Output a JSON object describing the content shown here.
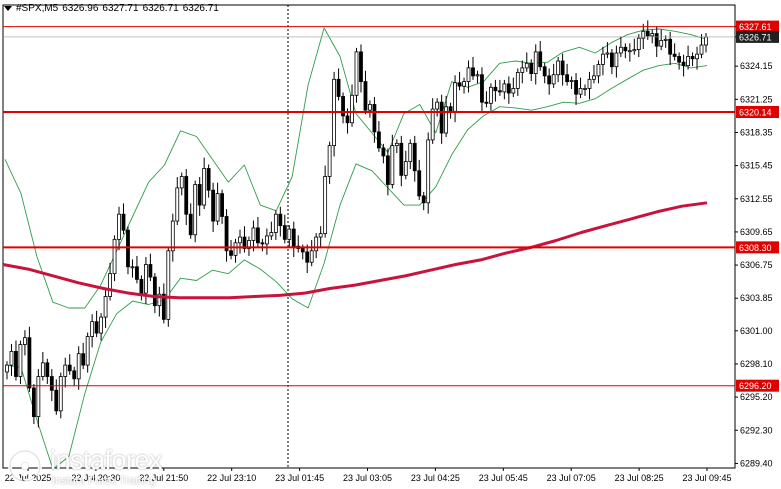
{
  "header": {
    "symbol": "#SPX,M5",
    "open": "6326.96",
    "high": "6327.71",
    "low": "6326.71",
    "close": "6326.71"
  },
  "logo": {
    "name": "instaforex",
    "tagline": "Instant Forex Trading"
  },
  "colors": {
    "background": "#ffffff",
    "candle": "#000000",
    "bollinger": "#2e9e4a",
    "moving_average": "#c8143c",
    "level_line": "#e00000",
    "price_tag": "#e00000",
    "current_price_tag": "#202020",
    "grid": "#000000"
  },
  "chart_data": {
    "type": "candlestick",
    "title": "",
    "y_ticks": [
      "6327.61",
      "6326.71",
      "6324.15",
      "6321.25",
      "6318.35",
      "6315.45",
      "6312.55",
      "6309.65",
      "6306.75",
      "6303.85",
      "6301.00",
      "6298.10",
      "6295.20",
      "6292.30",
      "6289.40"
    ],
    "ylim": [
      6289.0,
      6329.5
    ],
    "x_ticks": [
      "22 Jul 2025",
      "22 Jul 20:30",
      "22 Jul 21:50",
      "22 Jul 23:10",
      "23 Jul 01:45",
      "23 Jul 03:05",
      "23 Jul 04:25",
      "23 Jul 05:45",
      "23 Jul 07:05",
      "23 Jul 08:25",
      "23 Jul 09:45"
    ],
    "horizontal_levels": [
      {
        "label": "6327.61",
        "value": 6327.61,
        "style": "thin"
      },
      {
        "label": "6320.14",
        "value": 6320.14,
        "style": "thick"
      },
      {
        "label": "6308.30",
        "value": 6308.3,
        "style": "thick"
      },
      {
        "label": "6296.20",
        "value": 6296.2,
        "style": "thin"
      }
    ],
    "current_price": {
      "label": "6326.71",
      "value": 6326.71
    },
    "close_series": [
      6298.0,
      6299.2,
      6297.0,
      6299.8,
      6300.4,
      6296.0,
      6293.5,
      6297.0,
      6298.2,
      6297.0,
      6295.8,
      6294.0,
      6297.0,
      6298.0,
      6297.5,
      6296.8,
      6299.0,
      6298.0,
      6300.5,
      6301.8,
      6300.8,
      6302.2,
      6304.0,
      6306.0,
      6309.0,
      6311.2,
      6309.8,
      6306.6,
      6306.6,
      6305.5,
      6304.3,
      6306.8,
      6305.7,
      6303.2,
      6304.2,
      6302.0,
      6308.0,
      6310.6,
      6313.5,
      6314.5,
      6311.2,
      6309.4,
      6313.8,
      6312.0,
      6315.2,
      6313.3,
      6310.6,
      6313.0,
      6311.0,
      6308.0,
      6307.6,
      6308.7,
      6309.2,
      6308.2,
      6308.9,
      6310.0,
      6308.7,
      6308.6,
      6309.3,
      6309.6,
      6311.2,
      6310.2,
      6309.0,
      6309.9,
      6308.4,
      6308.2,
      6307.9,
      6307.0,
      6308.0,
      6309.2,
      6309.5,
      6314.5,
      6317.2,
      6323.0,
      6321.5,
      6319.8,
      6319.2,
      6321.6,
      6325.4,
      6322.8,
      6320.3,
      6320.8,
      6318.4,
      6317.0,
      6316.3,
      6313.8,
      6317.2,
      6317.4,
      6314.6,
      6315.8,
      6317.4,
      6315.0,
      6312.8,
      6312.2,
      6317.7,
      6320.4,
      6321.0,
      6318.3,
      6320.6,
      6320.2,
      6322.7,
      6322.4,
      6322.8,
      6324.0,
      6323.3,
      6323.4,
      6321.0,
      6320.9,
      6322.3,
      6322.0,
      6321.9,
      6322.6,
      6321.8,
      6322.2,
      6323.6,
      6324.0,
      6324.4,
      6323.5,
      6325.4,
      6324.1,
      6323.3,
      6322.6,
      6323.4,
      6324.6,
      6323.4,
      6322.8,
      6322.9,
      6321.7,
      6322.2,
      6322.2,
      6323.0,
      6323.3,
      6324.3,
      6325.2,
      6325.3,
      6324.1,
      6325.3,
      6325.8,
      6325.5,
      6325.5,
      6325.6,
      6326.6,
      6327.2,
      6326.8,
      6327.0,
      6325.9,
      6326.4,
      6326.5,
      6325.2,
      6325.0,
      6324.5,
      6324.2,
      6325.0,
      6324.8,
      6325.2,
      6326.0,
      6326.7
    ],
    "ma_series": [
      6306.8,
      6306.4,
      6305.8,
      6305.2,
      6304.7,
      6304.3,
      6304.0,
      6303.9,
      6303.9,
      6303.9,
      6304.0,
      6304.1,
      6304.3,
      6304.7,
      6305.0,
      6305.4,
      6305.8,
      6306.3,
      6306.8,
      6307.2,
      6307.8,
      6308.3,
      6308.9,
      6309.6,
      6310.2,
      6310.8,
      6311.4,
      6311.9,
      6312.2
    ],
    "bollinger_upper": [
      6316.0,
      6313.0,
      6307.5,
      6303.5,
      6303.0,
      6303.0,
      6305.0,
      6308.0,
      6311.0,
      6314.0,
      6315.5,
      6318.5,
      6318.0,
      6316.0,
      6314.0,
      6315.5,
      6312.0,
      6311.5,
      6314.5,
      6322.5,
      6327.5,
      6325.0,
      6320.0,
      6318.3,
      6316.6,
      6320.0,
      6320.8,
      6318.3,
      6322.8,
      6322.3,
      6322.8,
      6324.4,
      6324.6,
      6324.4,
      6324.5,
      6325.4,
      6325.8,
      6325.3,
      6326.2,
      6326.9,
      6327.3,
      6327.4,
      6327.2,
      6326.9,
      6326.5
    ],
    "bollinger_lower": [
      6298.0,
      6297.8,
      6293.2,
      6288.9,
      6290.0,
      6295.5,
      6300.0,
      6302.5,
      6303.6,
      6303.3,
      6303.7,
      6305.6,
      6305.4,
      6306.3,
      6306.0,
      6307.2,
      6306.4,
      6305.3,
      6303.8,
      6303.0,
      6306.9,
      6312.0,
      6315.6,
      6315.0,
      6313.5,
      6312.0,
      6312.0,
      6313.6,
      6316.4,
      6318.6,
      6319.8,
      6320.6,
      6320.5,
      6320.3,
      6320.6,
      6321.0,
      6320.9,
      6321.3,
      6322.2,
      6323.0,
      6323.8,
      6324.2,
      6324.4,
      6324.0,
      6324.2
    ]
  }
}
